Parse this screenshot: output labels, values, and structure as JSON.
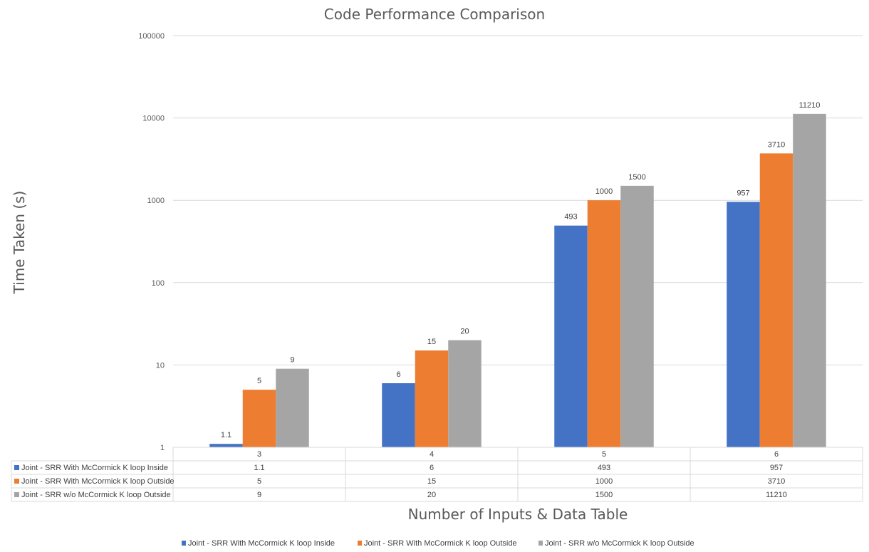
{
  "chart_data": {
    "type": "bar",
    "title": "Code Performance Comparison",
    "xlabel": "Number of Inputs & Data Table",
    "ylabel": "Time Taken (s)",
    "yscale": "log",
    "ylim": [
      1,
      100000
    ],
    "yticks": [
      "1",
      "10",
      "100",
      "1000",
      "10000",
      "100000"
    ],
    "grid": true,
    "legend_position": "bottom",
    "categories": [
      "3",
      "4",
      "5",
      "6"
    ],
    "series": [
      {
        "name": "Joint - SRR With McCormick K loop Inside",
        "color": "#4472C4",
        "values": [
          1.1,
          6,
          493,
          957
        ],
        "labels": [
          "1.1",
          "6",
          "493",
          "957"
        ]
      },
      {
        "name": "Joint - SRR With McCormick K loop Outside",
        "color": "#ED7D31",
        "values": [
          5,
          15,
          1000,
          3710
        ],
        "labels": [
          "5",
          "15",
          "1000",
          "3710"
        ]
      },
      {
        "name": "Joint - SRR w/o McCormick K loop Outside",
        "color": "#A5A5A5",
        "values": [
          9,
          20,
          1500,
          11210
        ],
        "labels": [
          "9",
          "20",
          "1500",
          "11210"
        ]
      }
    ]
  }
}
